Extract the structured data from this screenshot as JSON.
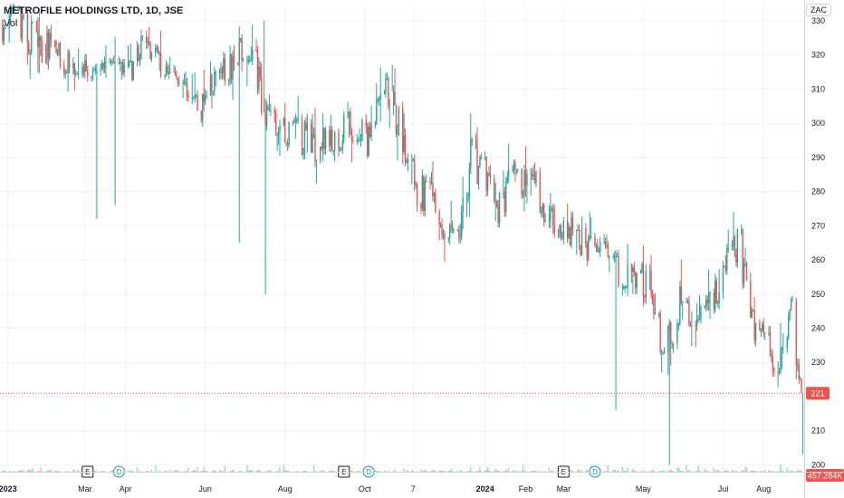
{
  "header": {
    "title": "METROFILE HOLDINGS LTD, 1D, JSE",
    "volume_label": "Vol",
    "currency": "ZAC"
  },
  "colors": {
    "up": "#26a69a",
    "down": "#ef5350",
    "grid": "#f0f3fa",
    "axis": "#d1d4dc",
    "event_icon": "#131722",
    "dividend_icon": "#2196a0"
  },
  "badges": {
    "last_price": "221",
    "volume": "457.284K"
  },
  "events": [
    {
      "type": "earnings",
      "label": "E",
      "x": "2023-03-03"
    },
    {
      "type": "dividend",
      "label": "D",
      "x": "2023-03-27"
    },
    {
      "type": "earnings",
      "label": "E",
      "x": "2023-09-15"
    },
    {
      "type": "dividend",
      "label": "D",
      "x": "2023-10-04"
    },
    {
      "type": "earnings",
      "label": "E",
      "x": "2024-03-01"
    },
    {
      "type": "dividend",
      "label": "D",
      "x": "2024-03-25"
    }
  ],
  "chart_data": {
    "type": "candlestick",
    "title": "METROFILE HOLDINGS LTD, 1D, JSE",
    "ylim": [
      198,
      335
    ],
    "y_ticks": [
      200,
      210,
      220,
      230,
      240,
      250,
      260,
      270,
      280,
      290,
      300,
      310,
      320,
      330
    ],
    "x_range": [
      "2022-12-26",
      "2024-09-01"
    ],
    "x_ticks": [
      {
        "label": "2023",
        "x": "2023-01-01",
        "bold": true
      },
      {
        "label": "Mar",
        "x": "2023-03-01"
      },
      {
        "label": "Apr",
        "x": "2023-04-01"
      },
      {
        "label": "Jun",
        "x": "2023-06-01"
      },
      {
        "label": "Aug",
        "x": "2023-08-01"
      },
      {
        "label": "Oct",
        "x": "2023-10-01"
      },
      {
        "label": "7",
        "x": "2023-11-07"
      },
      {
        "label": "2024",
        "x": "2024-01-01",
        "bold": true
      },
      {
        "label": "Feb",
        "x": "2024-02-01"
      },
      {
        "label": "Mar",
        "x": "2024-03-01"
      },
      {
        "label": "May",
        "x": "2024-05-01"
      },
      {
        "label": "Jul",
        "x": "2024-07-01"
      },
      {
        "label": "Aug",
        "x": "2024-08-01"
      }
    ],
    "grid": true,
    "last_price": 221,
    "anchors": [
      [
        "2022-12-28",
        330
      ],
      [
        "2023-01-15",
        326
      ],
      [
        "2023-02-05",
        321
      ],
      [
        "2023-02-25",
        318
      ],
      [
        "2023-03-12",
        312
      ],
      [
        "2023-03-28",
        314
      ],
      [
        "2023-04-12",
        322
      ],
      [
        "2023-04-28",
        315
      ],
      [
        "2023-05-15",
        309
      ],
      [
        "2023-05-31",
        305
      ],
      [
        "2023-06-20",
        318
      ],
      [
        "2023-07-05",
        325
      ],
      [
        "2023-07-20",
        298
      ],
      [
        "2023-08-10",
        296
      ],
      [
        "2023-08-30",
        294
      ],
      [
        "2023-09-20",
        300
      ],
      [
        "2023-10-05",
        295
      ],
      [
        "2023-10-15",
        310
      ],
      [
        "2023-10-28",
        300
      ],
      [
        "2023-11-10",
        281
      ],
      [
        "2023-11-25",
        275
      ],
      [
        "2023-12-10",
        262
      ],
      [
        "2023-12-22",
        292
      ],
      [
        "2024-01-10",
        274
      ],
      [
        "2024-01-25",
        285
      ],
      [
        "2024-02-10",
        280
      ],
      [
        "2024-02-25",
        268
      ],
      [
        "2024-03-12",
        266
      ],
      [
        "2024-03-28",
        262
      ],
      [
        "2024-04-15",
        256
      ],
      [
        "2024-04-30",
        255
      ],
      [
        "2024-05-15",
        236
      ],
      [
        "2024-05-31",
        248
      ],
      [
        "2024-06-15",
        244
      ],
      [
        "2024-06-30",
        256
      ],
      [
        "2024-07-12",
        264
      ],
      [
        "2024-07-25",
        242
      ],
      [
        "2024-08-10",
        232
      ],
      [
        "2024-08-22",
        245
      ],
      [
        "2024-08-30",
        221
      ]
    ],
    "spikes": [
      {
        "x": "2023-03-10",
        "low": 272
      },
      {
        "x": "2023-03-24",
        "low": 276
      },
      {
        "x": "2023-06-27",
        "low": 265
      },
      {
        "x": "2023-07-17",
        "low": 250
      },
      {
        "x": "2023-07-16",
        "high": 330
      },
      {
        "x": "2023-10-22",
        "high": 317
      },
      {
        "x": "2024-04-10",
        "low": 216
      },
      {
        "x": "2024-05-21",
        "low": 200
      },
      {
        "x": "2024-08-31",
        "low": 203
      }
    ]
  }
}
